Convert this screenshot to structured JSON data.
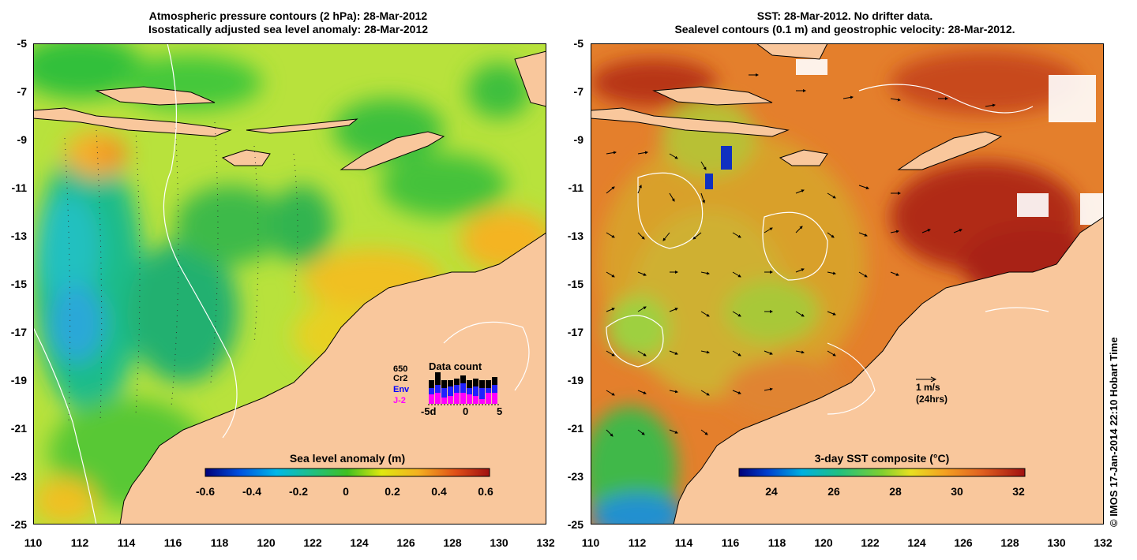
{
  "left_panel": {
    "title_line1": "Atmospheric pressure contours (2 hPa): 28-Mar-2012",
    "title_line2": "Isostatically adjusted sea level anomaly: 28-Mar-2012",
    "y_ticks": [
      "-5",
      "-7",
      "-9",
      "-11",
      "-13",
      "-15",
      "-17",
      "-19",
      "-21",
      "-23",
      "-25"
    ],
    "x_ticks": [
      "110",
      "112",
      "114",
      "116",
      "118",
      "120",
      "122",
      "124",
      "126",
      "128",
      "130",
      "132"
    ],
    "colorbar": {
      "title": "Sea level anomaly (m)",
      "ticks": [
        "-0.6",
        "-0.4",
        "-0.2",
        "0",
        "0.2",
        "0.4",
        "0.6"
      ]
    },
    "data_count": {
      "title": "Data count",
      "missions": [
        {
          "name": "650",
          "color": "#000000"
        },
        {
          "name": "Cr2",
          "color": "#000000"
        },
        {
          "name": "Env",
          "color": "#0000ff"
        },
        {
          "name": "J-2",
          "color": "#ff00ff"
        }
      ],
      "x_ticks": [
        "-5d",
        "0",
        "5"
      ]
    }
  },
  "right_panel": {
    "title_line1": "SST: 28-Mar-2012. No drifter data.",
    "title_line2": "Sealevel contours (0.1 m) and geostrophic velocity: 28-Mar-2012.",
    "y_ticks": [
      "-5",
      "-7",
      "-9",
      "-11",
      "-13",
      "-15",
      "-17",
      "-19",
      "-21",
      "-23",
      "-25"
    ],
    "x_ticks": [
      "110",
      "112",
      "114",
      "116",
      "118",
      "120",
      "122",
      "124",
      "126",
      "128",
      "130",
      "132"
    ],
    "colorbar": {
      "title": "3-day SST composite (°C)",
      "ticks": [
        "24",
        "26",
        "28",
        "30",
        "32"
      ]
    },
    "velocity_scale": {
      "label": "1 m/s",
      "sublabel": "(24hrs)"
    }
  },
  "credit": "© IMOS 17-Jan-2014 22:10 Hobart Time",
  "colors": {
    "land": "#f9c79c",
    "sla_base": "#b8e23c",
    "sst_base": "#e47f2c"
  }
}
